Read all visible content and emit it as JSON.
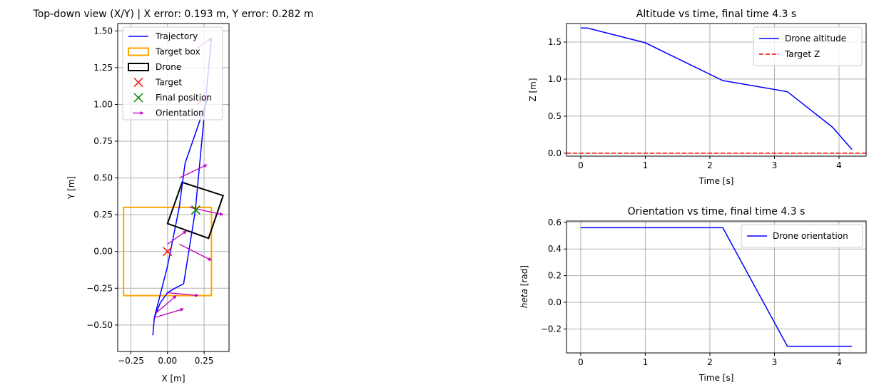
{
  "chart_data": [
    {
      "type": "scatter",
      "title": "Top-down view (X/Y) | X error: 0.193 m, Y error: 0.282 m",
      "xlabel": "X [m]",
      "ylabel": "Y [m]",
      "xlim": [
        -0.34,
        0.42
      ],
      "ylim": [
        -0.68,
        1.55
      ],
      "xticks": [
        -0.25,
        0.0,
        0.25
      ],
      "xtick_labels": [
        "−0.25",
        "0.00",
        "0.25"
      ],
      "yticks": [
        -0.5,
        -0.25,
        0.0,
        0.25,
        0.5,
        0.75,
        1.0,
        1.25,
        1.5
      ],
      "ytick_labels": [
        "−0.50",
        "−0.25",
        "0.00",
        "0.25",
        "0.50",
        "0.75",
        "1.00",
        "1.25",
        "1.50"
      ],
      "grid": true,
      "legend_position": "upper-left",
      "legend": [
        {
          "label": "Trajectory",
          "kind": "line",
          "color": "#0000ff"
        },
        {
          "label": "Target box",
          "kind": "rect",
          "color": "#ffa500"
        },
        {
          "label": "Drone",
          "kind": "rect",
          "color": "#000000"
        },
        {
          "label": "Target",
          "kind": "x",
          "color": "#ff0000"
        },
        {
          "label": "Final position",
          "kind": "x",
          "color": "#008000"
        },
        {
          "label": "Orientation",
          "kind": "arrow",
          "color": "#bf00bf"
        }
      ],
      "trajectory": {
        "color": "#0000ff",
        "x": [
          -0.1,
          -0.09,
          -0.05,
          0.0,
          0.05,
          0.11,
          0.19,
          0.3
        ],
        "y": [
          -0.57,
          -0.45,
          -0.35,
          -0.28,
          -0.25,
          -0.22,
          0.28,
          1.45
        ]
      },
      "return_path": {
        "x": [
          -0.09,
          0.0,
          0.04,
          0.08,
          0.12,
          0.28
        ],
        "y": [
          -0.45,
          -0.1,
          0.1,
          0.3,
          0.6,
          1.06
        ]
      },
      "target_box": {
        "x0": -0.3,
        "y0": -0.3,
        "x1": 0.3,
        "y1": 0.3,
        "color": "#ffa500"
      },
      "drone": {
        "corners": [
          [
            0.0,
            0.19
          ],
          [
            0.1,
            0.47
          ],
          [
            0.38,
            0.38
          ],
          [
            0.28,
            0.09
          ]
        ],
        "color": "#000000"
      },
      "target": {
        "x": 0.0,
        "y": 0.0,
        "color": "#ff0000"
      },
      "final_position": {
        "x": 0.193,
        "y": 0.282,
        "color": "#008000"
      },
      "orientation_color": "#bf00bf",
      "orientation_arrows": [
        {
          "x": -0.09,
          "y": -0.45,
          "dx": 0.2,
          "dy": 0.06
        },
        {
          "x": -0.08,
          "y": -0.42,
          "dx": 0.14,
          "dy": 0.12
        },
        {
          "x": 0.0,
          "y": -0.28,
          "dx": 0.21,
          "dy": -0.02
        },
        {
          "x": 0.0,
          "y": 0.05,
          "dx": 0.13,
          "dy": 0.09
        },
        {
          "x": 0.08,
          "y": 0.05,
          "dx": 0.22,
          "dy": -0.11
        },
        {
          "x": 0.15,
          "y": 0.3,
          "dx": 0.23,
          "dy": -0.05
        },
        {
          "x": 0.08,
          "y": 0.5,
          "dx": 0.19,
          "dy": 0.09
        },
        {
          "x": 0.2,
          "y": 1.38,
          "dx": 0.1,
          "dy": 0.07
        },
        {
          "x": 0.2,
          "y": 1.0,
          "dx": 0.08,
          "dy": 0.06
        }
      ]
    },
    {
      "type": "line",
      "title": "Altitude vs time, final time 4.3 s",
      "xlabel": "Time [s]",
      "ylabel": "Z [m]",
      "xlim": [
        -0.22,
        4.42
      ],
      "ylim": [
        -0.04,
        1.75
      ],
      "xticks": [
        0,
        1,
        2,
        3,
        4
      ],
      "xtick_labels": [
        "0",
        "1",
        "2",
        "3",
        "4"
      ],
      "yticks": [
        0.0,
        0.5,
        1.0,
        1.5
      ],
      "ytick_labels": [
        "0.0",
        "0.5",
        "1.0",
        "1.5"
      ],
      "grid": true,
      "legend_position": "upper-right",
      "series": [
        {
          "name": "Drone altitude",
          "color": "#0000ff",
          "style": "solid",
          "x": [
            0,
            0.1,
            1.0,
            2.2,
            3.2,
            3.9,
            4.2
          ],
          "y": [
            1.69,
            1.69,
            1.49,
            0.98,
            0.83,
            0.35,
            0.05
          ]
        },
        {
          "name": "Target Z",
          "color": "#ff0000",
          "style": "dashed",
          "x": [
            -0.22,
            4.42
          ],
          "y": [
            0.0,
            0.0
          ]
        }
      ]
    },
    {
      "type": "line",
      "title": "Orientation vs time, final time 4.3 s",
      "xlabel": "Time [s]",
      "ylabel_prefix": "heta",
      "ylabel_suffix": " [rad]",
      "xlim": [
        -0.22,
        4.42
      ],
      "ylim": [
        -0.38,
        0.61
      ],
      "xticks": [
        0,
        1,
        2,
        3,
        4
      ],
      "xtick_labels": [
        "0",
        "1",
        "2",
        "3",
        "4"
      ],
      "yticks": [
        -0.2,
        0.0,
        0.2,
        0.4,
        0.6
      ],
      "ytick_labels": [
        "−0.2",
        "0.0",
        "0.2",
        "0.4",
        "0.6"
      ],
      "grid": true,
      "legend_position": "upper-right",
      "series": [
        {
          "name": "Drone orientation",
          "color": "#0000ff",
          "style": "solid",
          "x": [
            0,
            2.2,
            3.2,
            4.2
          ],
          "y": [
            0.56,
            0.56,
            -0.33,
            -0.33
          ]
        }
      ]
    }
  ]
}
